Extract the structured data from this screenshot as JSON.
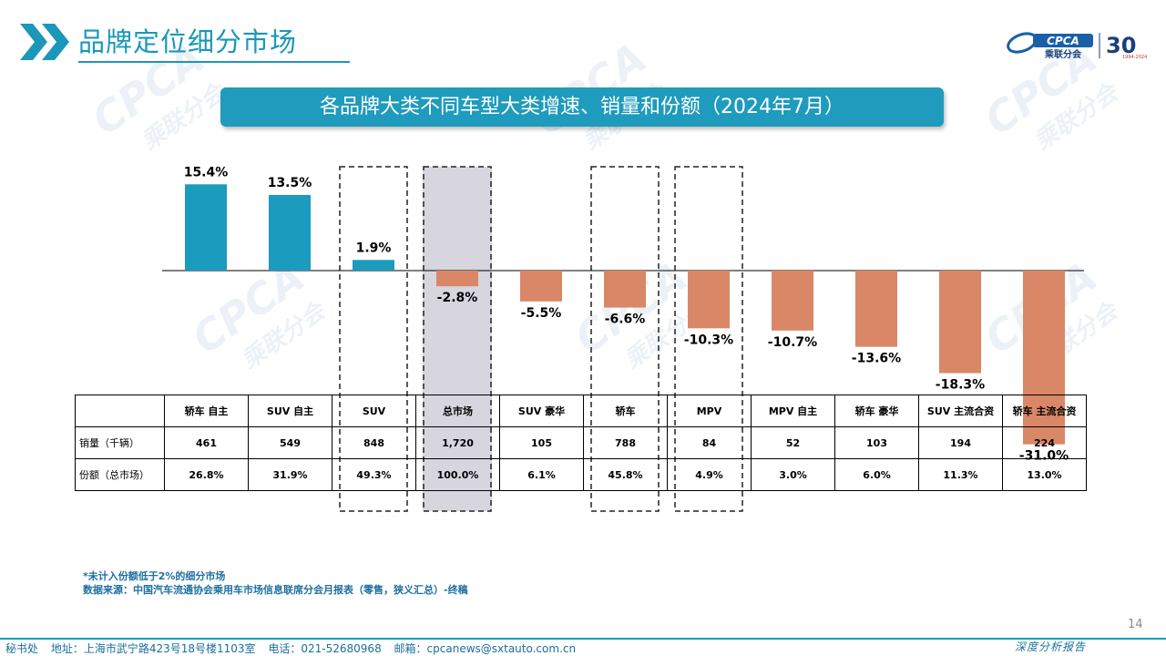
{
  "page": {
    "title": "品牌定位细分市场",
    "banner": "各品牌大类不同车型大类增速、销量和份额（2024年7月）",
    "page_number": "14"
  },
  "logo": {
    "brand": "CPCA",
    "org": "乘联分会",
    "anniv": "30",
    "anniv_years": "1994-2024"
  },
  "watermark": {
    "brand": "CPCA",
    "org": "乘联分会"
  },
  "chart_data": {
    "type": "bar",
    "categories": [
      "轿车 自主",
      "SUV 自主",
      "SUV",
      "总市场",
      "SUV 豪华",
      "轿车",
      "MPV",
      "MPV 自主",
      "轿车 豪华",
      "SUV 主流合资",
      "轿车 主流合资"
    ],
    "values": [
      15.4,
      13.5,
      1.9,
      -2.8,
      -5.5,
      -6.6,
      -10.3,
      -10.7,
      -13.6,
      -18.3,
      -31.0
    ],
    "value_labels": [
      "15.4%",
      "13.5%",
      "1.9%",
      "-2.8%",
      "-5.5%",
      "-6.6%",
      "-10.3%",
      "-10.7%",
      "-13.6%",
      "-18.3%",
      "-31.0%"
    ],
    "positive_color": "#1b9bbd",
    "negative_color": "#d98766",
    "highlight_fill": "#d7d6de",
    "highlight_filled": [
      "总市场"
    ],
    "highlight_dashed": [
      "SUV",
      "总市场",
      "轿车",
      "MPV"
    ]
  },
  "table": {
    "header_blank": "",
    "rows": [
      {
        "label": "销量（千辆）",
        "values": [
          "461",
          "549",
          "848",
          "1,720",
          "105",
          "788",
          "84",
          "52",
          "103",
          "194",
          "224"
        ]
      },
      {
        "label": "份额（总市场）",
        "values": [
          "26.8%",
          "31.9%",
          "49.3%",
          "100.0%",
          "6.1%",
          "45.8%",
          "4.9%",
          "3.0%",
          "6.0%",
          "11.3%",
          "13.0%"
        ]
      }
    ]
  },
  "notes": {
    "line1": "*未计入份额低于2%的细分市场",
    "line2": "数据来源：中国汽车流通协会乘用车市场信息联席分会月报表（零售，狭义汇总）-终稿"
  },
  "footer": {
    "office": "秘书处",
    "address": "地址：上海市武宁路423号18号楼1103室",
    "phone": "电话：021-52680968",
    "email": "邮箱：cpcanews@sxtauto.com.cn",
    "report": "深度分析报告"
  }
}
